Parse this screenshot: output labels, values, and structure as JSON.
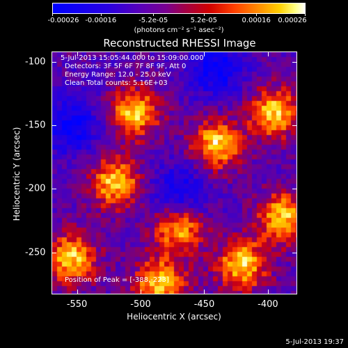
{
  "chart_data": {
    "type": "heatmap",
    "title": "Reconstructed RHESSI Image",
    "xlabel": "Heliocentric X (arcsec)",
    "ylabel": "Heliocentric Y (arcsec)",
    "xlim": [
      -570,
      -377
    ],
    "ylim": [
      -283,
      -92
    ],
    "x_ticks": [
      "-550",
      "-500",
      "-450",
      "-400"
    ],
    "y_ticks": [
      "-100",
      "-150",
      "-200",
      "-250"
    ],
    "colorbar": {
      "ticks": [
        "-0.00026",
        "-0.00016",
        "-5.2e-05",
        "5.2e-05",
        "0.00016",
        "0.00026"
      ],
      "units": "(photons cm⁻² s⁻¹ asec⁻²)",
      "range": [
        -0.00026,
        0.00026
      ]
    },
    "annotations": {
      "time_range": "5-Jul-2013 15:05:44.000 to 15:09:00.000",
      "detectors": "Detectors: 3F 5F 6F 7F 8F 9F, Att 0",
      "energy": "Energy Range: 12.0 - 25.0 keV",
      "method": "Clean    Total counts: 5.16E+03",
      "peak": "Position of Peak = [-388,-223]"
    },
    "peak_position": [
      -388,
      -223
    ],
    "bright_regions": [
      {
        "x": -520,
        "y": -195
      },
      {
        "x": -470,
        "y": -230
      },
      {
        "x": -440,
        "y": -165
      },
      {
        "x": -395,
        "y": -140
      },
      {
        "x": -388,
        "y": -223
      },
      {
        "x": -555,
        "y": -255
      },
      {
        "x": -485,
        "y": -275
      },
      {
        "x": -420,
        "y": -260
      },
      {
        "x": -505,
        "y": -140
      }
    ],
    "dim_regions": [
      {
        "x": -555,
        "y": -150
      },
      {
        "x": -440,
        "y": -105
      },
      {
        "x": -470,
        "y": -205
      }
    ]
  },
  "footer": {
    "timestamp": "5-Jul-2013 19:37"
  }
}
